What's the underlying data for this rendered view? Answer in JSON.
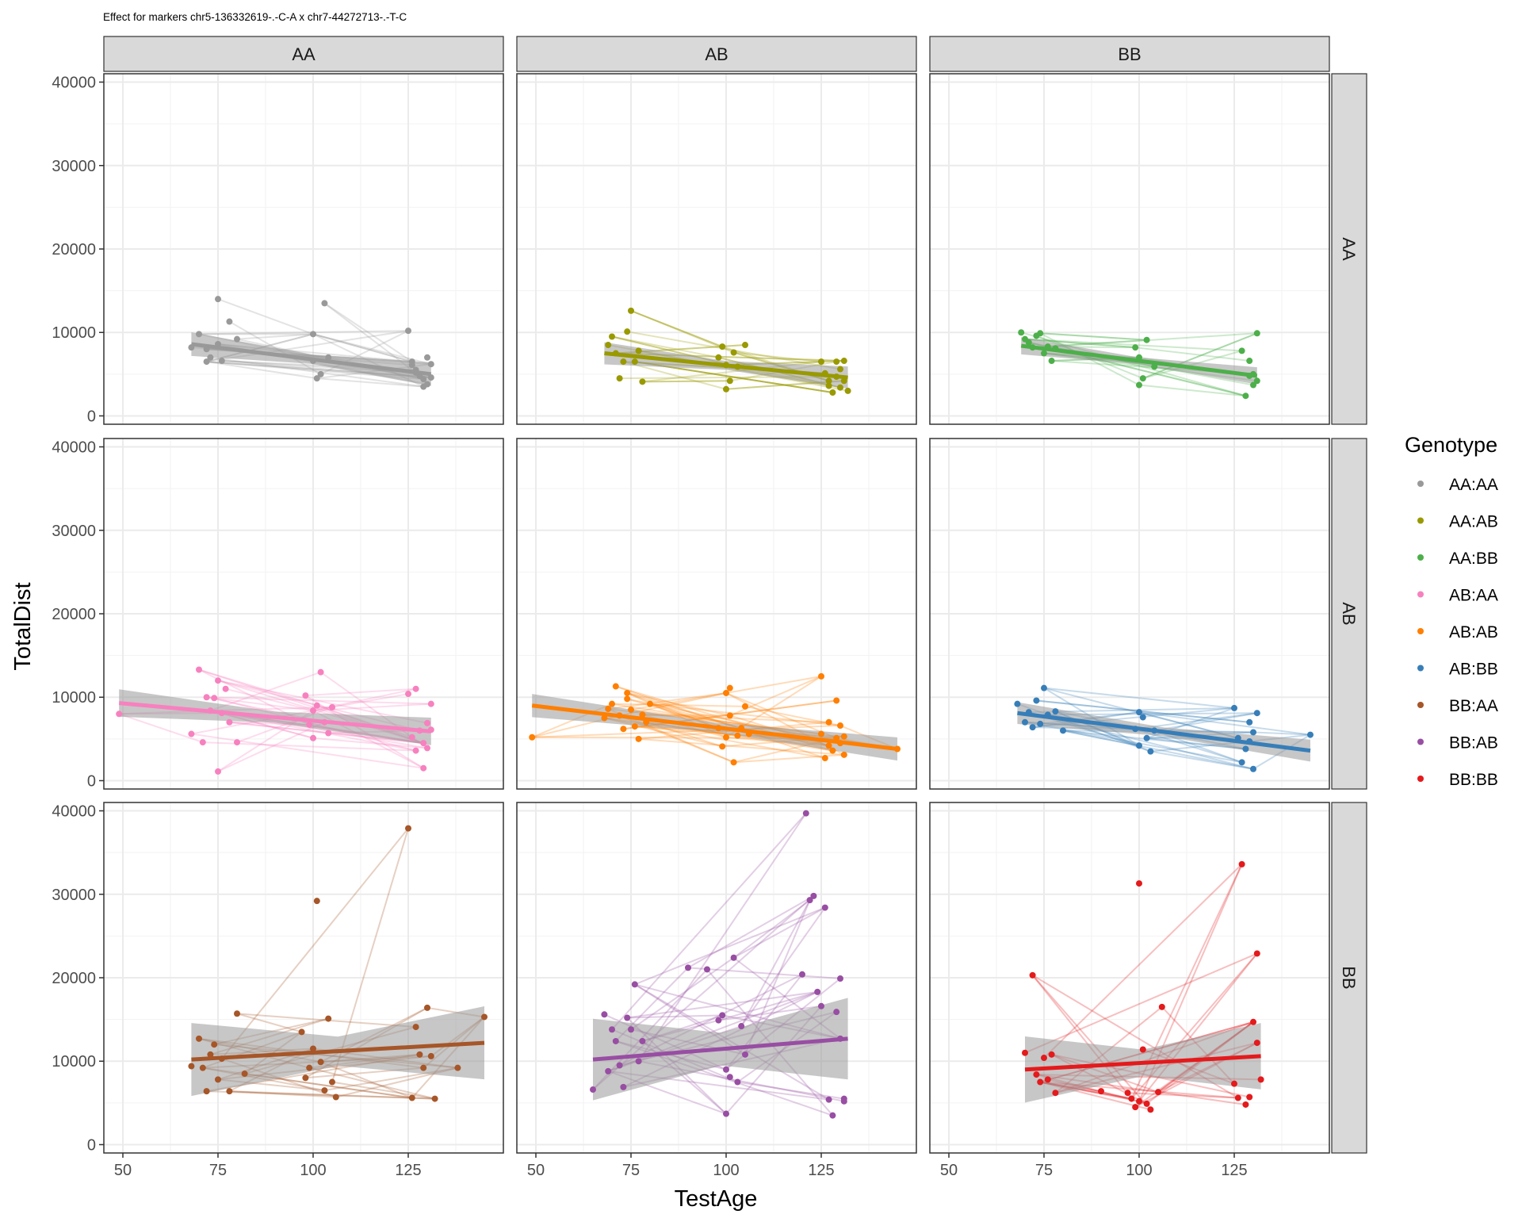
{
  "title": "Effect for markers chr5-136332619-.-C-A x chr7-44272713-.-T-C",
  "chart_data": {
    "type": "scatter",
    "facet_columns": [
      "AA",
      "AB",
      "BB"
    ],
    "facet_rows": [
      "AA",
      "AB",
      "BB"
    ],
    "xlabel": "TestAge",
    "ylabel": "TotalDist",
    "xlim": [
      45,
      150
    ],
    "ylim": [
      -1000,
      41000
    ],
    "x_ticks": [
      50,
      75,
      100,
      125
    ],
    "y_ticks": [
      0,
      10000,
      20000,
      30000,
      40000
    ],
    "grid": true,
    "legend_title": "Genotype",
    "legend_position": "right",
    "series": [
      {
        "name": "AA:AA",
        "color": "#999999",
        "row": 0,
        "col": 0,
        "x": [
          68,
          70,
          72,
          72,
          73,
          75,
          75,
          76,
          78,
          80,
          100,
          100,
          101,
          102,
          103,
          104,
          125,
          126,
          127,
          128,
          129,
          129,
          130,
          130,
          131,
          131,
          127,
          126
        ],
        "y": [
          8200,
          9800,
          8000,
          6500,
          7000,
          14000,
          8600,
          6600,
          11300,
          9200,
          9800,
          6600,
          4500,
          5000,
          13500,
          7000,
          10200,
          6500,
          5500,
          4800,
          4400,
          3500,
          7000,
          3800,
          4600,
          6200,
          5200,
          6100
        ],
        "fit": [
          [
            68,
            8600
          ],
          [
            131,
            5000
          ]
        ]
      },
      {
        "name": "AA:AB",
        "color": "#999900",
        "row": 0,
        "col": 1,
        "x": [
          69,
          70,
          71,
          72,
          73,
          74,
          75,
          76,
          77,
          78,
          98,
          99,
          100,
          100,
          101,
          102,
          103,
          105,
          125,
          126,
          127,
          127,
          128,
          129,
          129,
          130,
          130,
          131,
          131,
          132
        ],
        "y": [
          8500,
          9500,
          7500,
          4500,
          6500,
          10100,
          12600,
          6500,
          7800,
          4100,
          7000,
          8300,
          6100,
          3200,
          4200,
          7600,
          5900,
          8500,
          6500,
          5100,
          4200,
          3600,
          2800,
          6500,
          4700,
          3400,
          5600,
          6600,
          4200,
          3000
        ],
        "fit": [
          [
            68,
            7500
          ],
          [
            132,
            4600
          ]
        ]
      },
      {
        "name": "AA:BB",
        "color": "#4DAF4A",
        "row": 0,
        "col": 2,
        "x": [
          69,
          70,
          71,
          72,
          73,
          74,
          75,
          76,
          77,
          78,
          99,
          100,
          100,
          101,
          102,
          104,
          127,
          128,
          129,
          129,
          130,
          130,
          131,
          131
        ],
        "y": [
          10000,
          9200,
          8800,
          8200,
          9600,
          9900,
          7500,
          8300,
          6600,
          8100,
          8200,
          7000,
          3700,
          4500,
          9100,
          5900,
          7800,
          2400,
          4800,
          6600,
          3700,
          5000,
          9900,
          4200
        ],
        "fit": [
          [
            69,
            8400
          ],
          [
            131,
            4800
          ]
        ]
      },
      {
        "name": "AB:AA",
        "color": "#F781BF",
        "row": 1,
        "col": 0,
        "x": [
          49,
          68,
          70,
          71,
          72,
          73,
          74,
          75,
          75,
          76,
          77,
          78,
          80,
          98,
          99,
          100,
          100,
          101,
          102,
          103,
          104,
          105,
          125,
          126,
          127,
          127,
          128,
          129,
          129,
          130,
          130,
          131,
          131
        ],
        "y": [
          8000,
          5600,
          13300,
          4600,
          10000,
          8400,
          9900,
          1100,
          12000,
          8100,
          11000,
          7000,
          4600,
          10200,
          6700,
          5100,
          8400,
          9000,
          13000,
          7000,
          5700,
          8800,
          10400,
          5200,
          3600,
          11000,
          6000,
          4500,
          1500,
          6900,
          3900,
          9200,
          6100
        ],
        "fit": [
          [
            49,
            9300
          ],
          [
            131,
            5900
          ]
        ]
      },
      {
        "name": "AB:AB",
        "color": "#FF7F00",
        "row": 1,
        "col": 1,
        "x": [
          49,
          68,
          69,
          70,
          71,
          72,
          73,
          74,
          74,
          75,
          76,
          77,
          78,
          79,
          80,
          98,
          99,
          100,
          100,
          101,
          101,
          102,
          103,
          104,
          105,
          106,
          125,
          125,
          126,
          127,
          127,
          128,
          129,
          129,
          130,
          130,
          131,
          131,
          145
        ],
        "y": [
          5200,
          7500,
          8600,
          9200,
          11300,
          7800,
          6200,
          9800,
          10500,
          8500,
          6500,
          5000,
          7900,
          7000,
          9200,
          6300,
          4100,
          10500,
          5200,
          11100,
          7800,
          2200,
          5400,
          6300,
          8900,
          5600,
          12500,
          5600,
          2700,
          7000,
          4200,
          3600,
          9600,
          5100,
          4500,
          6600,
          3100,
          5300,
          3800
        ],
        "fit": [
          [
            49,
            9000
          ],
          [
            145,
            3800
          ]
        ]
      },
      {
        "name": "AB:BB",
        "color": "#377EB8",
        "row": 1,
        "col": 2,
        "x": [
          68,
          70,
          71,
          72,
          73,
          74,
          75,
          76,
          78,
          80,
          99,
          100,
          100,
          101,
          102,
          103,
          104,
          125,
          126,
          127,
          128,
          129,
          129,
          130,
          130,
          131,
          145
        ],
        "y": [
          9200,
          7000,
          8200,
          6400,
          9600,
          6800,
          11100,
          7900,
          8300,
          6000,
          6200,
          8200,
          4200,
          7600,
          5100,
          3500,
          6000,
          8700,
          5100,
          2200,
          3800,
          4700,
          7000,
          1400,
          5800,
          8100,
          5500
        ],
        "fit": [
          [
            68,
            8100
          ],
          [
            145,
            3600
          ]
        ]
      },
      {
        "name": "BB:AA",
        "color": "#A65628",
        "row": 2,
        "col": 0,
        "x": [
          68,
          70,
          71,
          72,
          73,
          74,
          75,
          76,
          78,
          80,
          82,
          97,
          98,
          99,
          100,
          101,
          102,
          103,
          104,
          105,
          106,
          125,
          126,
          127,
          128,
          129,
          130,
          131,
          132,
          138,
          145
        ],
        "y": [
          9400,
          12700,
          9200,
          6400,
          10800,
          12000,
          7800,
          10300,
          6400,
          15700,
          8500,
          13500,
          8000,
          9200,
          11500,
          29200,
          9900,
          6500,
          15100,
          7500,
          5700,
          37900,
          5600,
          14100,
          10800,
          9200,
          16400,
          10600,
          5500,
          9200,
          15300
        ],
        "fit": [
          [
            68,
            10200
          ],
          [
            145,
            12200
          ]
        ]
      },
      {
        "name": "BB:AB",
        "color": "#984EA3",
        "row": 2,
        "col": 1,
        "x": [
          65,
          68,
          69,
          70,
          71,
          72,
          73,
          74,
          75,
          76,
          77,
          78,
          90,
          95,
          98,
          99,
          100,
          100,
          101,
          102,
          103,
          104,
          105,
          120,
          121,
          122,
          123,
          124,
          125,
          126,
          127,
          128,
          129,
          130,
          130,
          131,
          131
        ],
        "y": [
          6600,
          15600,
          8800,
          13800,
          12400,
          9500,
          6900,
          15200,
          13800,
          19200,
          10000,
          12400,
          21200,
          21000,
          14900,
          15500,
          9000,
          3700,
          8100,
          22400,
          7500,
          14200,
          10800,
          20400,
          39700,
          29300,
          29800,
          18300,
          16600,
          28400,
          5400,
          3500,
          15900,
          19900,
          12700,
          5500,
          5200
        ],
        "fit": [
          [
            65,
            10200
          ],
          [
            132,
            12700
          ]
        ]
      },
      {
        "name": "BB:BB",
        "color": "#E41A1C",
        "row": 2,
        "col": 2,
        "x": [
          70,
          72,
          73,
          74,
          75,
          76,
          77,
          78,
          90,
          97,
          98,
          99,
          100,
          100,
          101,
          102,
          103,
          105,
          106,
          125,
          126,
          127,
          128,
          129,
          130,
          131,
          131,
          132
        ],
        "y": [
          11000,
          20300,
          8400,
          7500,
          10400,
          7800,
          10800,
          6200,
          6400,
          6200,
          5500,
          4500,
          5200,
          31300,
          11400,
          4900,
          4200,
          6300,
          16500,
          7300,
          5600,
          33600,
          4800,
          5700,
          14700,
          22900,
          12200,
          7800
        ],
        "fit": [
          [
            70,
            9000
          ],
          [
            132,
            10600
          ]
        ]
      }
    ]
  }
}
